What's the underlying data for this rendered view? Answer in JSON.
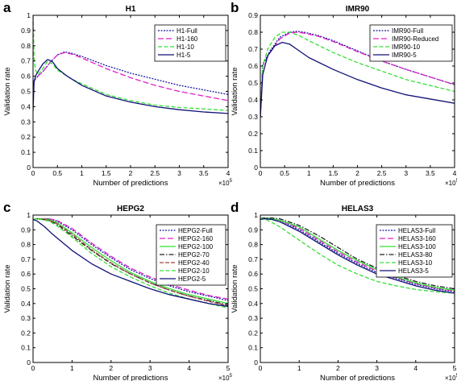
{
  "chart_data": [
    {
      "type": "line",
      "letter": "a",
      "title": "H1",
      "xlabel": "Number of predictions",
      "ylabel": "Validation rate",
      "x_multiplier": "×10",
      "x_multiplier_exp": "5",
      "xlim": [
        0,
        4
      ],
      "ylim": [
        0,
        1
      ],
      "xticks": [
        0,
        0.5,
        1,
        1.5,
        2,
        2.5,
        3,
        3.5,
        4
      ],
      "xtick_labels": [
        "0",
        "0.5",
        "1",
        "1.5",
        "2",
        "2.5",
        "3",
        "3.5",
        "4"
      ],
      "yticks": [
        0,
        0.1,
        0.2,
        0.3,
        0.4,
        0.5,
        0.6,
        0.7,
        0.8,
        0.9,
        1
      ],
      "ytick_labels": [
        "0",
        "0.1",
        "0.2",
        "0.3",
        "0.4",
        "0.5",
        "0.6",
        "0.7",
        "0.8",
        "0.9",
        "1"
      ],
      "legend_position": "top-right",
      "series": [
        {
          "name": "H1-Full",
          "color": "#1a1aa0",
          "dash": "2,1.5",
          "x": [
            0,
            0.02,
            0.1,
            0.2,
            0.35,
            0.5,
            0.65,
            0.8,
            1,
            1.5,
            2,
            2.5,
            3,
            3.5,
            4
          ],
          "y": [
            0.45,
            0.57,
            0.6,
            0.63,
            0.69,
            0.74,
            0.76,
            0.75,
            0.73,
            0.67,
            0.62,
            0.58,
            0.54,
            0.51,
            0.48
          ]
        },
        {
          "name": "H1-160",
          "color": "#e020c8",
          "dash": "7,3",
          "x": [
            0,
            0.02,
            0.1,
            0.2,
            0.35,
            0.5,
            0.65,
            0.8,
            1,
            1.5,
            2,
            2.5,
            3,
            3.5,
            4
          ],
          "y": [
            0.5,
            0.57,
            0.6,
            0.63,
            0.69,
            0.74,
            0.755,
            0.745,
            0.72,
            0.65,
            0.59,
            0.54,
            0.5,
            0.47,
            0.44
          ]
        },
        {
          "name": "H1-10",
          "color": "#33e033",
          "dash": "5,2.5",
          "x": [
            0,
            0.01,
            0.02,
            0.05,
            0.1,
            0.2,
            0.3,
            0.4,
            0.5,
            0.6,
            0.8,
            1,
            1.5,
            2,
            2.5,
            3,
            3.5,
            4
          ],
          "y": [
            1,
            0.88,
            0.72,
            0.64,
            0.61,
            0.65,
            0.7,
            0.68,
            0.64,
            0.62,
            0.58,
            0.55,
            0.48,
            0.44,
            0.41,
            0.395,
            0.385,
            0.375
          ]
        },
        {
          "name": "H1-5",
          "color": "#101078",
          "dash": "",
          "x": [
            0,
            0.02,
            0.05,
            0.1,
            0.2,
            0.3,
            0.4,
            0.5,
            0.7,
            1,
            1.5,
            2,
            2.5,
            3,
            3.5,
            4
          ],
          "y": [
            0.37,
            0.56,
            0.6,
            0.63,
            0.68,
            0.71,
            0.695,
            0.65,
            0.6,
            0.54,
            0.47,
            0.43,
            0.4,
            0.38,
            0.365,
            0.355
          ]
        }
      ]
    },
    {
      "type": "line",
      "letter": "b",
      "title": "IMR90",
      "xlabel": "Number of predictions",
      "ylabel": "Validation rate",
      "x_multiplier": "×10",
      "x_multiplier_exp": "5",
      "xlim": [
        0,
        4
      ],
      "ylim": [
        0,
        0.9
      ],
      "xticks": [
        0,
        0.5,
        1,
        1.5,
        2,
        2.5,
        3,
        3.5,
        4
      ],
      "xtick_labels": [
        "0",
        "0.5",
        "1",
        "1.5",
        "2",
        "2.5",
        "3",
        "3.5",
        "4"
      ],
      "yticks": [
        0,
        0.1,
        0.2,
        0.3,
        0.4,
        0.5,
        0.6,
        0.7,
        0.8,
        0.9
      ],
      "ytick_labels": [
        "0",
        "0.1",
        "0.2",
        "0.3",
        "0.4",
        "0.5",
        "0.6",
        "0.7",
        "0.8",
        "0.9"
      ],
      "legend_position": "top-right",
      "series": [
        {
          "name": "IMR90-Full",
          "color": "#1a1aa0",
          "dash": "2,1.5",
          "x": [
            0,
            0.05,
            0.2,
            0.4,
            0.6,
            0.75,
            0.9,
            1.2,
            1.5,
            2,
            2.5,
            3,
            3.5,
            4
          ],
          "y": [
            0.3,
            0.61,
            0.69,
            0.77,
            0.8,
            0.805,
            0.8,
            0.78,
            0.75,
            0.69,
            0.63,
            0.58,
            0.535,
            0.49
          ]
        },
        {
          "name": "IMR90-Reduced",
          "color": "#e020c8",
          "dash": "7,3",
          "x": [
            0,
            0.05,
            0.2,
            0.4,
            0.6,
            0.75,
            0.9,
            1.2,
            1.5,
            2,
            2.5,
            3,
            3.5,
            4
          ],
          "y": [
            0.3,
            0.6,
            0.68,
            0.76,
            0.795,
            0.8,
            0.795,
            0.775,
            0.745,
            0.685,
            0.63,
            0.58,
            0.535,
            0.49
          ]
        },
        {
          "name": "IMR90-10",
          "color": "#33e033",
          "dash": "5,2.5",
          "x": [
            0,
            0.05,
            0.15,
            0.3,
            0.45,
            0.6,
            0.8,
            1,
            1.5,
            2,
            2.5,
            3,
            3.5,
            4
          ],
          "y": [
            0.3,
            0.6,
            0.7,
            0.77,
            0.8,
            0.8,
            0.78,
            0.75,
            0.68,
            0.62,
            0.57,
            0.52,
            0.485,
            0.45
          ]
        },
        {
          "name": "IMR90-5",
          "color": "#101078",
          "dash": "",
          "x": [
            0,
            0.05,
            0.15,
            0.3,
            0.45,
            0.6,
            0.8,
            1,
            1.5,
            2,
            2.5,
            3,
            3.5,
            4
          ],
          "y": [
            0.3,
            0.55,
            0.66,
            0.72,
            0.74,
            0.73,
            0.69,
            0.65,
            0.58,
            0.52,
            0.47,
            0.43,
            0.405,
            0.38
          ]
        }
      ]
    },
    {
      "type": "line",
      "letter": "c",
      "title": "HEPG2",
      "xlabel": "Number of predictions",
      "ylabel": "Validation rate",
      "x_multiplier": "×10",
      "x_multiplier_exp": "5",
      "xlim": [
        0,
        5
      ],
      "ylim": [
        0,
        1
      ],
      "xticks": [
        0,
        1,
        2,
        3,
        4,
        5
      ],
      "xtick_labels": [
        "0",
        "1",
        "2",
        "3",
        "4",
        "5"
      ],
      "yticks": [
        0,
        0.1,
        0.2,
        0.3,
        0.4,
        0.5,
        0.6,
        0.7,
        0.8,
        0.9,
        1
      ],
      "ytick_labels": [
        "0",
        "0.1",
        "0.2",
        "0.3",
        "0.4",
        "0.5",
        "0.6",
        "0.7",
        "0.8",
        "0.9",
        "1"
      ],
      "legend_position": "top-right",
      "series": [
        {
          "name": "HEPG2-Full",
          "color": "#1a1aa0",
          "dash": "2,1.5",
          "x": [
            0,
            0.1,
            0.4,
            0.6,
            1,
            1.5,
            2,
            2.5,
            3,
            3.5,
            4,
            4.5,
            5
          ],
          "y": [
            0.97,
            0.975,
            0.975,
            0.96,
            0.9,
            0.8,
            0.71,
            0.63,
            0.57,
            0.52,
            0.48,
            0.45,
            0.42
          ]
        },
        {
          "name": "HEPG2-160",
          "color": "#e020c8",
          "dash": "7,3",
          "x": [
            0,
            0.1,
            0.4,
            0.6,
            1,
            1.5,
            2,
            2.5,
            3,
            3.5,
            4,
            4.5,
            5
          ],
          "y": [
            0.97,
            0.975,
            0.975,
            0.965,
            0.91,
            0.81,
            0.72,
            0.64,
            0.58,
            0.53,
            0.49,
            0.455,
            0.43
          ]
        },
        {
          "name": "HEPG2-100",
          "color": "#33e033",
          "dash": "",
          "x": [
            0,
            0.1,
            0.4,
            0.6,
            1,
            1.5,
            2,
            2.5,
            3,
            3.5,
            4,
            4.5,
            5
          ],
          "y": [
            0.97,
            0.975,
            0.97,
            0.95,
            0.88,
            0.78,
            0.69,
            0.61,
            0.55,
            0.5,
            0.46,
            0.43,
            0.4
          ]
        },
        {
          "name": "HEPG2-70",
          "color": "#202020",
          "dash": "6,2,1.5,2",
          "x": [
            0,
            0.1,
            0.4,
            0.6,
            1,
            1.5,
            2,
            2.5,
            3,
            3.5,
            4,
            4.5,
            5
          ],
          "y": [
            0.97,
            0.975,
            0.965,
            0.94,
            0.86,
            0.76,
            0.67,
            0.6,
            0.54,
            0.49,
            0.45,
            0.42,
            0.39
          ]
        },
        {
          "name": "HEPG2-40",
          "color": "#a04040",
          "dash": "5,2",
          "x": [
            0,
            0.1,
            0.4,
            0.6,
            1,
            1.5,
            2,
            2.5,
            3,
            3.5,
            4,
            4.5,
            5
          ],
          "y": [
            0.97,
            0.975,
            0.965,
            0.945,
            0.87,
            0.765,
            0.675,
            0.6,
            0.54,
            0.49,
            0.45,
            0.415,
            0.385
          ]
        },
        {
          "name": "HEPG2-10",
          "color": "#33e033",
          "dash": "5,2.5",
          "x": [
            0,
            0.1,
            0.4,
            0.6,
            1,
            1.5,
            2,
            2.5,
            3,
            3.5,
            4,
            4.5,
            5
          ],
          "y": [
            0.97,
            0.975,
            0.96,
            0.93,
            0.85,
            0.74,
            0.65,
            0.58,
            0.52,
            0.47,
            0.43,
            0.4,
            0.37
          ]
        },
        {
          "name": "HEPG2-5",
          "color": "#101078",
          "dash": "",
          "x": [
            0,
            0.1,
            0.3,
            0.5,
            1,
            1.5,
            2,
            2.5,
            3,
            3.5,
            4,
            4.5,
            5
          ],
          "y": [
            0.97,
            0.96,
            0.92,
            0.87,
            0.76,
            0.67,
            0.6,
            0.55,
            0.5,
            0.46,
            0.43,
            0.4,
            0.38
          ]
        }
      ]
    },
    {
      "type": "line",
      "letter": "d",
      "title": "HELAS3",
      "xlabel": "Number of predictions",
      "ylabel": "Validation rate",
      "x_multiplier": "×10",
      "x_multiplier_exp": "5",
      "xlim": [
        0,
        5
      ],
      "ylim": [
        0,
        1
      ],
      "xticks": [
        0,
        1,
        2,
        3,
        4,
        5
      ],
      "xtick_labels": [
        "0",
        "1",
        "2",
        "3",
        "4",
        "5"
      ],
      "yticks": [
        0,
        0.1,
        0.2,
        0.3,
        0.4,
        0.5,
        0.6,
        0.7,
        0.8,
        0.9,
        1
      ],
      "ytick_labels": [
        "0",
        "0.1",
        "0.2",
        "0.3",
        "0.4",
        "0.5",
        "0.6",
        "0.7",
        "0.8",
        "0.9",
        "1"
      ],
      "legend_position": "top-right",
      "series": [
        {
          "name": "HELAS3-Full",
          "color": "#1a1aa0",
          "dash": "2,1.5",
          "x": [
            0,
            0.1,
            0.3,
            0.5,
            1,
            1.5,
            2,
            2.5,
            3,
            3.5,
            4,
            4.5,
            5
          ],
          "y": [
            0.98,
            0.98,
            0.975,
            0.965,
            0.9,
            0.82,
            0.74,
            0.67,
            0.61,
            0.57,
            0.53,
            0.5,
            0.48
          ]
        },
        {
          "name": "HELAS3-160",
          "color": "#e020c8",
          "dash": "7,3",
          "x": [
            0,
            0.1,
            0.3,
            0.5,
            1,
            1.5,
            2,
            2.5,
            3,
            3.5,
            4,
            4.5,
            5
          ],
          "y": [
            0.98,
            0.98,
            0.975,
            0.965,
            0.91,
            0.83,
            0.75,
            0.68,
            0.62,
            0.575,
            0.535,
            0.505,
            0.485
          ]
        },
        {
          "name": "HELAS3-100",
          "color": "#33e033",
          "dash": "",
          "x": [
            0,
            0.1,
            0.3,
            0.5,
            1,
            1.5,
            2,
            2.5,
            3,
            3.5,
            4,
            4.5,
            5
          ],
          "y": [
            0.98,
            0.98,
            0.975,
            0.965,
            0.92,
            0.84,
            0.76,
            0.69,
            0.63,
            0.58,
            0.54,
            0.51,
            0.49
          ]
        },
        {
          "name": "HELAS3-80",
          "color": "#202020",
          "dash": "6,2,1.5,2",
          "x": [
            0,
            0.1,
            0.3,
            0.5,
            1,
            1.5,
            2,
            2.5,
            3,
            3.5,
            4,
            4.5,
            5
          ],
          "y": [
            0.98,
            0.98,
            0.98,
            0.975,
            0.93,
            0.86,
            0.78,
            0.7,
            0.64,
            0.59,
            0.55,
            0.52,
            0.5
          ]
        },
        {
          "name": "HELAS3-10",
          "color": "#33e033",
          "dash": "5,2.5",
          "x": [
            0,
            0.1,
            0.3,
            0.5,
            1,
            1.5,
            2,
            2.5,
            3,
            3.5,
            4,
            4.5,
            5
          ],
          "y": [
            0.98,
            0.975,
            0.95,
            0.92,
            0.83,
            0.74,
            0.66,
            0.6,
            0.55,
            0.52,
            0.495,
            0.48,
            0.47
          ]
        },
        {
          "name": "HELAS3-5",
          "color": "#101078",
          "dash": "",
          "x": [
            0,
            0.1,
            0.3,
            0.5,
            1,
            1.5,
            2,
            2.5,
            3,
            3.5,
            4,
            4.5,
            5
          ],
          "y": [
            0.97,
            0.975,
            0.97,
            0.955,
            0.89,
            0.81,
            0.73,
            0.66,
            0.6,
            0.56,
            0.52,
            0.49,
            0.47
          ]
        }
      ]
    }
  ]
}
